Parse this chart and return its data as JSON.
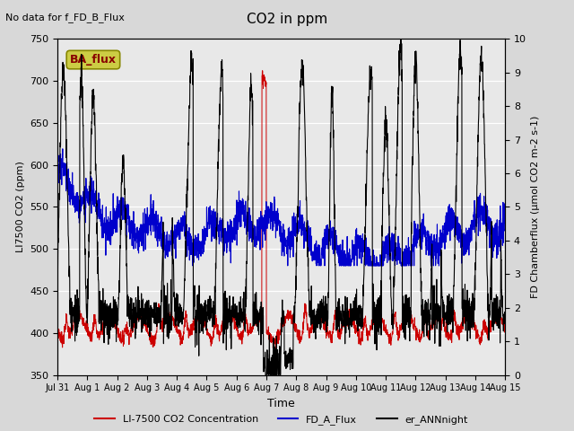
{
  "title": "CO2 in ppm",
  "top_left_text": "No data for f_FD_B_Flux",
  "annotation_box": "BA_flux",
  "xlabel": "Time",
  "ylabel_left": "LI7500 CO2 (ppm)",
  "ylabel_right": "FD Chamberflux (μmol CO2 m-2 s-1)",
  "ylim_left": [
    350,
    750
  ],
  "ylim_right": [
    0.0,
    10.0
  ],
  "yticks_left": [
    350,
    400,
    450,
    500,
    550,
    600,
    650,
    700,
    750
  ],
  "yticks_right": [
    0.0,
    1.0,
    2.0,
    3.0,
    4.0,
    5.0,
    6.0,
    7.0,
    8.0,
    9.0,
    10.0
  ],
  "xtick_labels": [
    "Jul 31",
    "Aug 1",
    "Aug 2",
    "Aug 3",
    "Aug 4",
    "Aug 5",
    "Aug 6",
    "Aug 7",
    "Aug 8",
    "Aug 9",
    "Aug 10",
    "Aug 11",
    "Aug 12",
    "Aug 13",
    "Aug 14",
    "Aug 15"
  ],
  "fig_bg_color": "#d8d8d8",
  "plot_bg_color": "#e8e8e8",
  "line_red": "#cc0000",
  "line_blue": "#0000cc",
  "line_black": "#000000",
  "legend_labels": [
    "LI-7500 CO2 Concentration",
    "FD_A_Flux",
    "er_ANNnight"
  ],
  "annot_facecolor": "#cccc44",
  "annot_textcolor": "#880000",
  "n_points": 2400
}
